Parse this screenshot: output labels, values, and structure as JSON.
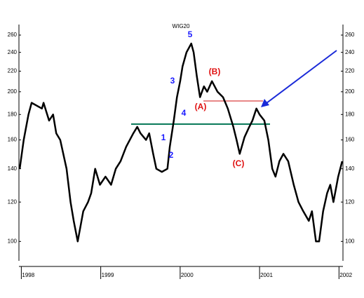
{
  "chart_data": {
    "type": "line",
    "title": "WIG20",
    "x": [
      1997.98,
      1998.03,
      1998.09,
      1998.13,
      1998.26,
      1998.28,
      1998.35,
      1998.4,
      1998.44,
      1998.49,
      1998.57,
      1998.62,
      1998.66,
      1998.71,
      1998.78,
      1998.84,
      1998.88,
      1998.93,
      1998.99,
      1999.06,
      1999.13,
      1999.19,
      1999.25,
      1999.32,
      1999.41,
      1999.46,
      1999.5,
      1999.57,
      1999.61,
      1999.66,
      1999.7,
      1999.77,
      1999.84,
      1999.87,
      1999.92,
      1999.96,
      2000.0,
      2000.03,
      2000.08,
      2000.14,
      2000.17,
      2000.21,
      2000.25,
      2000.3,
      2000.34,
      2000.4,
      2000.47,
      2000.54,
      2000.6,
      2000.67,
      2000.71,
      2000.75,
      2000.81,
      2000.87,
      2000.91,
      2000.96,
      2001.0,
      2001.06,
      2001.11,
      2001.16,
      2001.2,
      2001.25,
      2001.3,
      2001.36,
      2001.43,
      2001.49,
      2001.55,
      2001.62,
      2001.66,
      2001.71,
      2001.75,
      2001.8,
      2001.85,
      2001.89,
      2001.93,
      2001.99,
      2002.04
    ],
    "series": [
      {
        "color": "#000000",
        "values": [
          140,
          160,
          180,
          190,
          185,
          190,
          175,
          180,
          165,
          160,
          140,
          120,
          110,
          100,
          115,
          120,
          125,
          140,
          130,
          135,
          130,
          140,
          145,
          155,
          165,
          170,
          165,
          160,
          165,
          150,
          140,
          138,
          140,
          155,
          175,
          195,
          210,
          225,
          240,
          250,
          240,
          215,
          195,
          205,
          200,
          210,
          200,
          195,
          185,
          170,
          160,
          150,
          162,
          170,
          175,
          185,
          180,
          175,
          160,
          140,
          135,
          145,
          150,
          145,
          130,
          120,
          115,
          110,
          115,
          100,
          100,
          115,
          125,
          130,
          120,
          135,
          145
        ]
      }
    ],
    "xlim": [
      1997.97,
      2002.05
    ],
    "xticks": [
      1998,
      1999,
      2000,
      2001,
      2002
    ],
    "ylim": [
      92,
      273
    ],
    "yticks": [
      100,
      120,
      140,
      160,
      180,
      200,
      220,
      240,
      260
    ],
    "log_y": true,
    "annotations": [
      {
        "text": "1",
        "color": "#1a1aff"
      },
      {
        "text": "2",
        "color": "#1a1aff"
      },
      {
        "text": "3",
        "color": "#1a1aff"
      },
      {
        "text": "4",
        "color": "#1a1aff"
      },
      {
        "text": "5",
        "color": "#1a1aff"
      },
      {
        "text": "(A)",
        "color": "#e01010"
      },
      {
        "text": "(B)",
        "color": "#e01010"
      },
      {
        "text": "(C)",
        "color": "#e01010"
      }
    ]
  }
}
